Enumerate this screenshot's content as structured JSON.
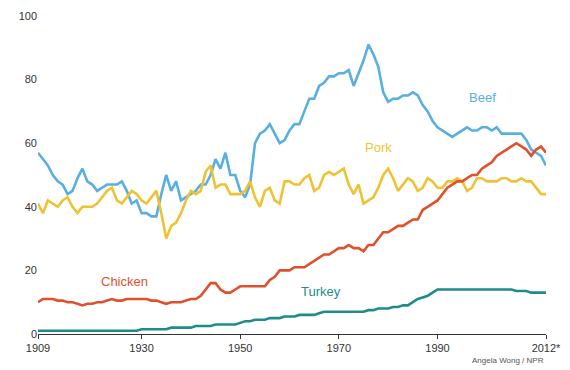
{
  "chart_data": {
    "type": "line",
    "x": [
      1909,
      1910,
      1911,
      1912,
      1913,
      1914,
      1915,
      1916,
      1917,
      1918,
      1919,
      1920,
      1921,
      1922,
      1923,
      1924,
      1925,
      1926,
      1927,
      1928,
      1929,
      1930,
      1931,
      1932,
      1933,
      1934,
      1935,
      1936,
      1937,
      1938,
      1939,
      1940,
      1941,
      1942,
      1943,
      1944,
      1945,
      1946,
      1947,
      1948,
      1949,
      1950,
      1951,
      1952,
      1953,
      1954,
      1955,
      1956,
      1957,
      1958,
      1959,
      1960,
      1961,
      1962,
      1963,
      1964,
      1965,
      1966,
      1967,
      1968,
      1969,
      1970,
      1971,
      1972,
      1973,
      1974,
      1975,
      1976,
      1977,
      1978,
      1979,
      1980,
      1981,
      1982,
      1983,
      1984,
      1985,
      1986,
      1987,
      1988,
      1989,
      1990,
      1991,
      1992,
      1993,
      1994,
      1995,
      1996,
      1997,
      1998,
      1999,
      2000,
      2001,
      2002,
      2003,
      2004,
      2005,
      2006,
      2007,
      2008,
      2009,
      2010,
      2011,
      2012
    ],
    "series": [
      {
        "name": "Beef",
        "color": "#5aaee0",
        "values": [
          57,
          55,
          53,
          50,
          48,
          47,
          44,
          45,
          49,
          52,
          48,
          47,
          45,
          46,
          47,
          47,
          47,
          48,
          45,
          41,
          42,
          38,
          38,
          37,
          37,
          44,
          50,
          45,
          48,
          42,
          43,
          44,
          45,
          47,
          47,
          50,
          55,
          52,
          57,
          50,
          50,
          45,
          43,
          47,
          60,
          63,
          64,
          66,
          63,
          60,
          61,
          64,
          66,
          66,
          70,
          74,
          74,
          78,
          79,
          81,
          81,
          82,
          82,
          83,
          78,
          82,
          86,
          91,
          88,
          84,
          76,
          73,
          74,
          74,
          75,
          75,
          76,
          75,
          72,
          70,
          67,
          65,
          64,
          63,
          62,
          63,
          64,
          65,
          64,
          64,
          65,
          65,
          64,
          65,
          63,
          63,
          63,
          63,
          63,
          61,
          58,
          57,
          56,
          53
        ]
      },
      {
        "name": "Pork",
        "color": "#efc234",
        "values": [
          41,
          38,
          42,
          41,
          40,
          42,
          43,
          40,
          38,
          40,
          40,
          40,
          41,
          43,
          45,
          46,
          42,
          41,
          43,
          45,
          44,
          42,
          41,
          43,
          45,
          38,
          30,
          34,
          35,
          38,
          42,
          45,
          44,
          45,
          51,
          53,
          46,
          47,
          47,
          44,
          44,
          44,
          45,
          48,
          43,
          40,
          45,
          46,
          42,
          41,
          48,
          48,
          47,
          47,
          49,
          50,
          45,
          46,
          50,
          51,
          50,
          51,
          52,
          47,
          44,
          47,
          41,
          42,
          43,
          46,
          50,
          52,
          49,
          45,
          47,
          49,
          48,
          45,
          46,
          49,
          48,
          46,
          46,
          48,
          48,
          49,
          48,
          45,
          46,
          49,
          49,
          48,
          48,
          48,
          49,
          49,
          48,
          48,
          49,
          48,
          48,
          46,
          44,
          44
        ]
      },
      {
        "name": "Chicken",
        "color": "#e0502d",
        "values": [
          10,
          11,
          11,
          11,
          10.5,
          10.5,
          10,
          10,
          9.5,
          9,
          9.5,
          9.5,
          10,
          10,
          10.5,
          11,
          10.5,
          10.5,
          11,
          11,
          11,
          11,
          11,
          10.5,
          10.5,
          10,
          9.5,
          10,
          10,
          10,
          10.5,
          11,
          11,
          12,
          14,
          16,
          16,
          14,
          13,
          13,
          14,
          15,
          15,
          15,
          15,
          15,
          15,
          17,
          18,
          20,
          20,
          20,
          21,
          21,
          21,
          22,
          23,
          24,
          25,
          25,
          26,
          27,
          27,
          28,
          27,
          27,
          26,
          28,
          28,
          30,
          32,
          32,
          33,
          34,
          34,
          35,
          36,
          36,
          39,
          40,
          41,
          42,
          44,
          46,
          47,
          48,
          48,
          49,
          50,
          50,
          52,
          53,
          54,
          56,
          57,
          58,
          59,
          60,
          59,
          58,
          56,
          58,
          59,
          57
        ]
      },
      {
        "name": "Turkey",
        "color": "#1f8b8b",
        "values": [
          1,
          1,
          1,
          1,
          1,
          1,
          1,
          1,
          1,
          1,
          1,
          1,
          1,
          1,
          1,
          1,
          1,
          1,
          1,
          1,
          1,
          1.5,
          1.5,
          1.5,
          1.5,
          1.5,
          1.5,
          2,
          2,
          2,
          2,
          2,
          2.5,
          2.5,
          2.5,
          2.5,
          3,
          3,
          3,
          3,
          3,
          3.5,
          4,
          4,
          4.5,
          4.5,
          4.5,
          5,
          5,
          5,
          5.5,
          5.5,
          5.5,
          6,
          6,
          6,
          6,
          6.5,
          7,
          7,
          7,
          7,
          7,
          7,
          7,
          7,
          7,
          7.5,
          7.5,
          8,
          8,
          8,
          8.5,
          8.5,
          9,
          9,
          10,
          11,
          11.5,
          12,
          13,
          14,
          14,
          14,
          14,
          14,
          14,
          14,
          14,
          14,
          14,
          14,
          14,
          14,
          14,
          14,
          14,
          13.5,
          13.5,
          13.5,
          13,
          13,
          13,
          13
        ]
      }
    ],
    "xlim": [
      1909,
      2012
    ],
    "xticks": [
      1909,
      1930,
      1950,
      1970,
      1990,
      {
        "value": 2012,
        "label": "2012*"
      }
    ],
    "ylim": [
      0,
      100
    ],
    "yticks": [
      0,
      20,
      40,
      60,
      80,
      100
    ],
    "grid": false,
    "annotations": [
      {
        "text": "Angela Wong / NPR"
      }
    ]
  }
}
